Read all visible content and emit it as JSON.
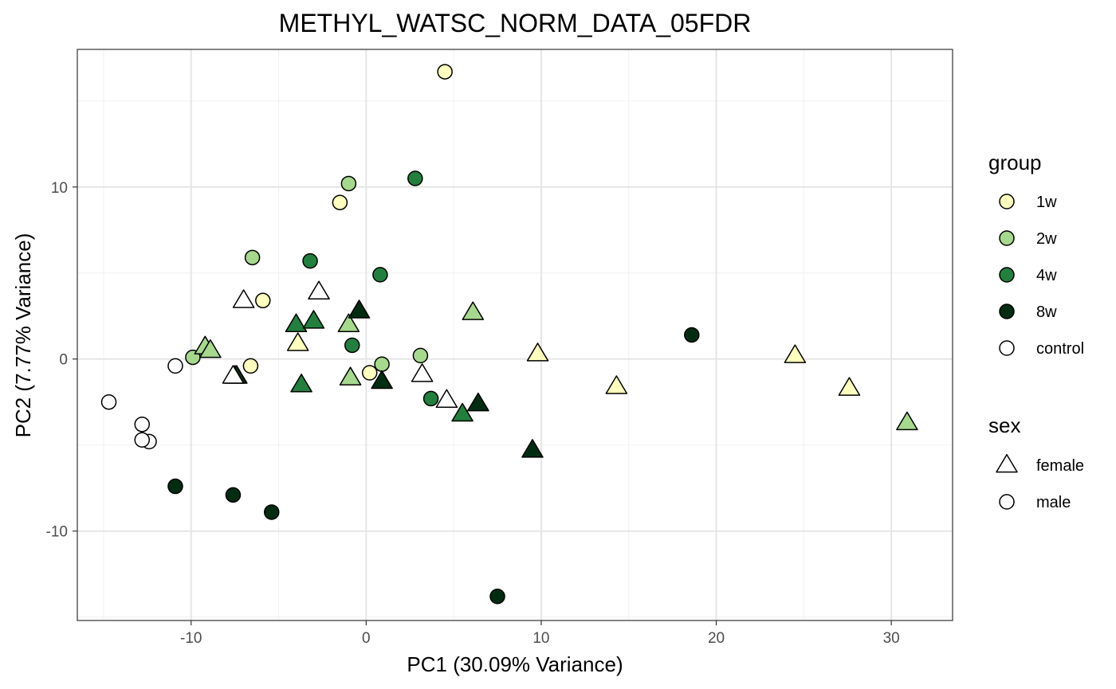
{
  "chart_data": {
    "type": "scatter",
    "title": "METHYL_WATSC_NORM_DATA_05FDR",
    "xlabel": "PC1 (30.09% Variance)",
    "ylabel": "PC2 (7.77% Variance)",
    "xlim": [
      -16.5,
      33.5
    ],
    "ylim": [
      -15.2,
      18.0
    ],
    "x_ticks": [
      -10,
      0,
      10,
      20,
      30
    ],
    "y_ticks": [
      -10,
      0,
      10
    ],
    "x_tick_labels": [
      "-10",
      "0",
      "10",
      "20",
      "30"
    ],
    "y_tick_labels": [
      "-10",
      "0",
      "10"
    ],
    "grid": true,
    "legend_placement": "right",
    "legend": {
      "group_title": "group",
      "sex_title": "sex",
      "groups": [
        {
          "label": "1w",
          "color": "#FFFFBF"
        },
        {
          "label": "2w",
          "color": "#A6D88E"
        },
        {
          "label": "4w",
          "color": "#237F3E"
        },
        {
          "label": "8w",
          "color": "#002D12"
        },
        {
          "label": "control",
          "color": "#FFFFFF"
        }
      ],
      "sexes": [
        {
          "label": "female",
          "shape": "triangle"
        },
        {
          "label": "male",
          "shape": "circle"
        }
      ]
    },
    "points": [
      {
        "x": 4.5,
        "y": 16.7,
        "group": "1w",
        "sex": "male"
      },
      {
        "x": -1.5,
        "y": 9.1,
        "group": "1w",
        "sex": "male"
      },
      {
        "x": -5.9,
        "y": 3.4,
        "group": "1w",
        "sex": "male"
      },
      {
        "x": -6.6,
        "y": -0.4,
        "group": "1w",
        "sex": "male"
      },
      {
        "x": 0.2,
        "y": -0.8,
        "group": "1w",
        "sex": "male"
      },
      {
        "x": -1.0,
        "y": 10.2,
        "group": "2w",
        "sex": "male"
      },
      {
        "x": -6.5,
        "y": 5.9,
        "group": "2w",
        "sex": "male"
      },
      {
        "x": -9.9,
        "y": 0.1,
        "group": "2w",
        "sex": "male"
      },
      {
        "x": 0.9,
        "y": -0.3,
        "group": "2w",
        "sex": "male"
      },
      {
        "x": 3.1,
        "y": 0.2,
        "group": "2w",
        "sex": "male"
      },
      {
        "x": 2.8,
        "y": 10.5,
        "group": "4w",
        "sex": "male"
      },
      {
        "x": -3.2,
        "y": 5.7,
        "group": "4w",
        "sex": "male"
      },
      {
        "x": 0.8,
        "y": 4.9,
        "group": "4w",
        "sex": "male"
      },
      {
        "x": -0.8,
        "y": 0.8,
        "group": "4w",
        "sex": "male"
      },
      {
        "x": 3.7,
        "y": -2.3,
        "group": "4w",
        "sex": "male"
      },
      {
        "x": 18.6,
        "y": 1.4,
        "group": "8w",
        "sex": "male"
      },
      {
        "x": -10.9,
        "y": -7.4,
        "group": "8w",
        "sex": "male"
      },
      {
        "x": -7.6,
        "y": -7.9,
        "group": "8w",
        "sex": "male"
      },
      {
        "x": -5.4,
        "y": -8.9,
        "group": "8w",
        "sex": "male"
      },
      {
        "x": 7.5,
        "y": -13.8,
        "group": "8w",
        "sex": "male"
      },
      {
        "x": -10.9,
        "y": -0.4,
        "group": "control",
        "sex": "male"
      },
      {
        "x": -14.7,
        "y": -2.5,
        "group": "control",
        "sex": "male"
      },
      {
        "x": -12.8,
        "y": -3.8,
        "group": "control",
        "sex": "male"
      },
      {
        "x": -12.4,
        "y": -4.8,
        "group": "control",
        "sex": "male"
      },
      {
        "x": -12.8,
        "y": -4.7,
        "group": "control",
        "sex": "male"
      },
      {
        "x": -3.9,
        "y": 0.9,
        "group": "1w",
        "sex": "female"
      },
      {
        "x": 9.8,
        "y": 0.3,
        "group": "1w",
        "sex": "female"
      },
      {
        "x": 14.3,
        "y": -1.6,
        "group": "1w",
        "sex": "female"
      },
      {
        "x": 24.5,
        "y": 0.2,
        "group": "1w",
        "sex": "female"
      },
      {
        "x": 27.6,
        "y": -1.7,
        "group": "1w",
        "sex": "female"
      },
      {
        "x": -9.2,
        "y": 0.7,
        "group": "2w",
        "sex": "female"
      },
      {
        "x": -8.9,
        "y": 0.5,
        "group": "2w",
        "sex": "female"
      },
      {
        "x": -1.0,
        "y": 2.0,
        "group": "2w",
        "sex": "female"
      },
      {
        "x": -0.9,
        "y": -1.1,
        "group": "2w",
        "sex": "female"
      },
      {
        "x": 6.1,
        "y": 2.7,
        "group": "2w",
        "sex": "female"
      },
      {
        "x": 30.9,
        "y": -3.7,
        "group": "2w",
        "sex": "female"
      },
      {
        "x": -4.0,
        "y": 2.0,
        "group": "4w",
        "sex": "female"
      },
      {
        "x": -3.0,
        "y": 2.2,
        "group": "4w",
        "sex": "female"
      },
      {
        "x": -3.7,
        "y": -1.5,
        "group": "4w",
        "sex": "female"
      },
      {
        "x": 5.5,
        "y": -3.2,
        "group": "4w",
        "sex": "female"
      },
      {
        "x": -0.4,
        "y": 2.8,
        "group": "8w",
        "sex": "female"
      },
      {
        "x": -7.5,
        "y": -1.0,
        "group": "8w",
        "sex": "female"
      },
      {
        "x": -7.4,
        "y": -1.0,
        "group": "8w",
        "sex": "female"
      },
      {
        "x": 0.9,
        "y": -1.3,
        "group": "8w",
        "sex": "female"
      },
      {
        "x": 6.4,
        "y": -2.6,
        "group": "8w",
        "sex": "female"
      },
      {
        "x": 9.5,
        "y": -5.3,
        "group": "8w",
        "sex": "female"
      },
      {
        "x": -7.0,
        "y": 3.4,
        "group": "control",
        "sex": "female"
      },
      {
        "x": -2.7,
        "y": 3.9,
        "group": "control",
        "sex": "female"
      },
      {
        "x": -7.6,
        "y": -1.0,
        "group": "control",
        "sex": "female"
      },
      {
        "x": 3.2,
        "y": -0.9,
        "group": "control",
        "sex": "female"
      },
      {
        "x": 4.6,
        "y": -2.4,
        "group": "control",
        "sex": "female"
      }
    ]
  }
}
